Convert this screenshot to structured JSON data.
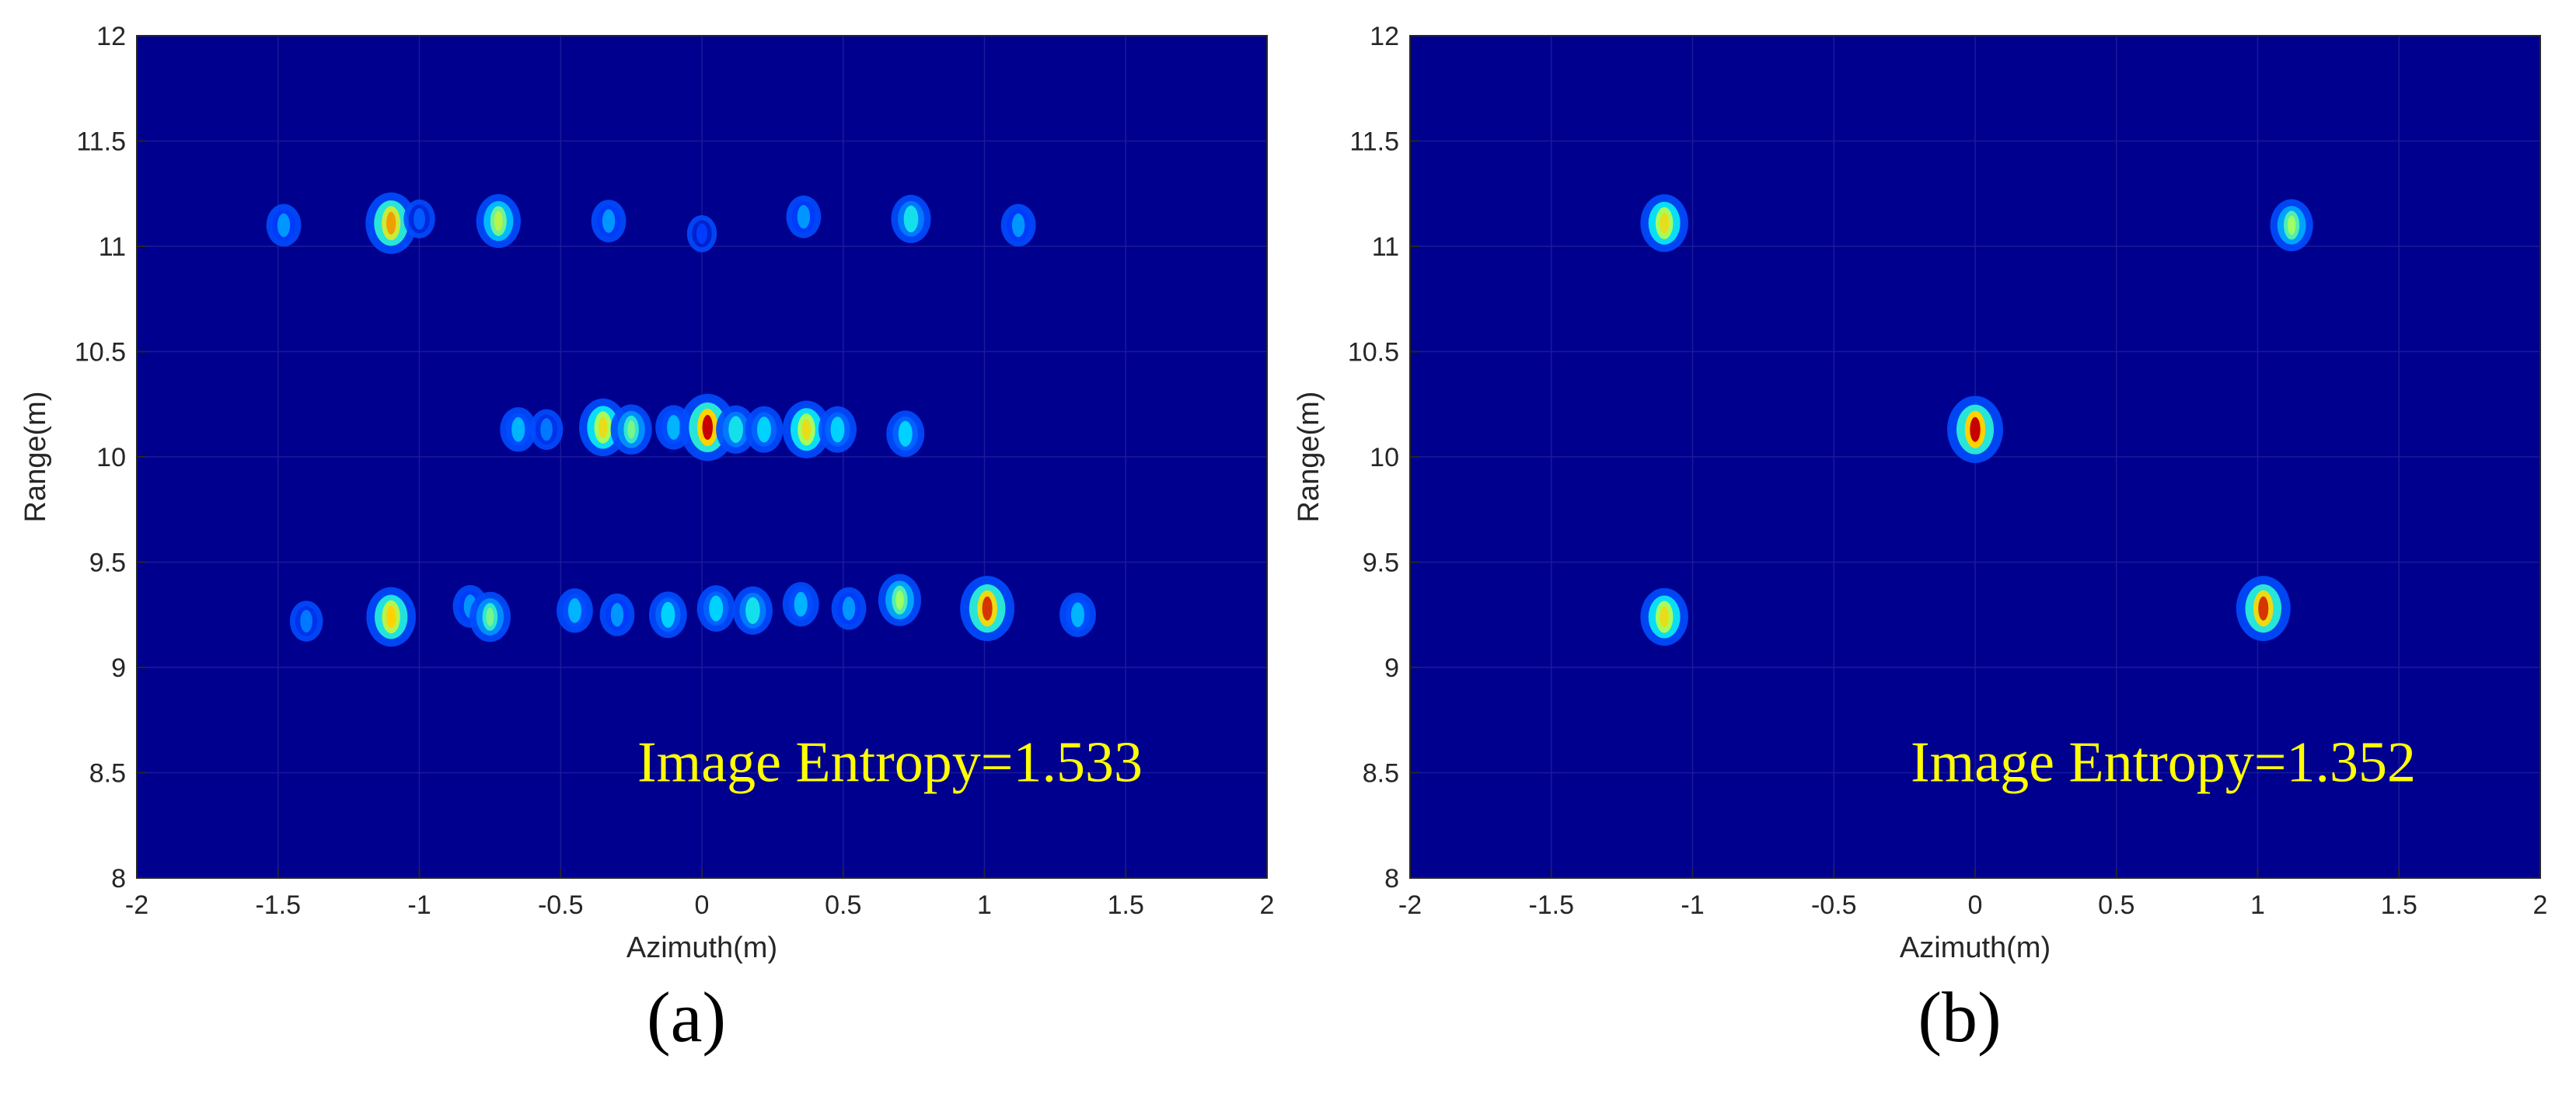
{
  "colors": {
    "background": "#00008f",
    "annotation": "#ffff00",
    "grid": "#1a1a9a",
    "axis": "#262626"
  },
  "chart_data": [
    {
      "type": "heatmap",
      "panel_label": "(a)",
      "xlabel": "Azimuth(m)",
      "ylabel": "Range(m)",
      "xlim": [
        -2,
        2
      ],
      "ylim": [
        8,
        12
      ],
      "xticks": [
        "-2",
        "-1.5",
        "-1",
        "-0.5",
        "0",
        "0.5",
        "1",
        "1.5",
        "2"
      ],
      "yticks": [
        "8",
        "8.5",
        "9",
        "9.5",
        "10",
        "10.5",
        "11",
        "11.5",
        "12"
      ],
      "grid": true,
      "annotation": "Image Entropy=1.533",
      "points": [
        {
          "x": -1.48,
          "y": 11.1,
          "v": 0.35
        },
        {
          "x": -1.1,
          "y": 11.11,
          "v": 0.85
        },
        {
          "x": -1.0,
          "y": 11.13,
          "v": 0.25
        },
        {
          "x": -0.72,
          "y": 11.12,
          "v": 0.65
        },
        {
          "x": -0.33,
          "y": 11.12,
          "v": 0.35
        },
        {
          "x": 0.0,
          "y": 11.06,
          "v": 0.2
        },
        {
          "x": 0.36,
          "y": 11.14,
          "v": 0.35
        },
        {
          "x": 0.74,
          "y": 11.13,
          "v": 0.5
        },
        {
          "x": 1.12,
          "y": 11.1,
          "v": 0.35
        },
        {
          "x": -0.65,
          "y": 10.13,
          "v": 0.4
        },
        {
          "x": -0.55,
          "y": 10.13,
          "v": 0.3
        },
        {
          "x": -0.35,
          "y": 10.14,
          "v": 0.75
        },
        {
          "x": -0.25,
          "y": 10.13,
          "v": 0.55
        },
        {
          "x": -0.1,
          "y": 10.14,
          "v": 0.4
        },
        {
          "x": 0.02,
          "y": 10.14,
          "v": 1.0
        },
        {
          "x": 0.12,
          "y": 10.13,
          "v": 0.5
        },
        {
          "x": 0.22,
          "y": 10.13,
          "v": 0.45
        },
        {
          "x": 0.37,
          "y": 10.13,
          "v": 0.75
        },
        {
          "x": 0.48,
          "y": 10.13,
          "v": 0.45
        },
        {
          "x": 0.72,
          "y": 10.11,
          "v": 0.45
        },
        {
          "x": -1.4,
          "y": 9.22,
          "v": 0.3
        },
        {
          "x": -1.1,
          "y": 9.24,
          "v": 0.8
        },
        {
          "x": -0.82,
          "y": 9.29,
          "v": 0.35
        },
        {
          "x": -0.75,
          "y": 9.24,
          "v": 0.55
        },
        {
          "x": -0.45,
          "y": 9.27,
          "v": 0.4
        },
        {
          "x": -0.3,
          "y": 9.25,
          "v": 0.35
        },
        {
          "x": -0.12,
          "y": 9.25,
          "v": 0.45
        },
        {
          "x": 0.05,
          "y": 9.28,
          "v": 0.45
        },
        {
          "x": 0.18,
          "y": 9.27,
          "v": 0.5
        },
        {
          "x": 0.35,
          "y": 9.3,
          "v": 0.4
        },
        {
          "x": 0.52,
          "y": 9.28,
          "v": 0.35
        },
        {
          "x": 0.7,
          "y": 9.32,
          "v": 0.6
        },
        {
          "x": 1.01,
          "y": 9.28,
          "v": 0.95
        },
        {
          "x": 1.33,
          "y": 9.25,
          "v": 0.4
        }
      ]
    },
    {
      "type": "heatmap",
      "panel_label": "(b)",
      "xlabel": "Azimuth(m)",
      "ylabel": "Range(m)",
      "xlim": [
        -2,
        2
      ],
      "ylim": [
        8,
        12
      ],
      "xticks": [
        "-2",
        "-1.5",
        "-1",
        "-0.5",
        "0",
        "0.5",
        "1",
        "1.5",
        "2"
      ],
      "yticks": [
        "8",
        "8.5",
        "9",
        "9.5",
        "10",
        "10.5",
        "11",
        "11.5",
        "12"
      ],
      "grid": true,
      "annotation": "Image Entropy=1.352",
      "points": [
        {
          "x": -1.1,
          "y": 11.11,
          "v": 0.75
        },
        {
          "x": 1.12,
          "y": 11.1,
          "v": 0.6
        },
        {
          "x": 0.0,
          "y": 10.13,
          "v": 1.0
        },
        {
          "x": -1.1,
          "y": 9.24,
          "v": 0.75
        },
        {
          "x": 1.02,
          "y": 9.28,
          "v": 0.95
        }
      ]
    }
  ]
}
